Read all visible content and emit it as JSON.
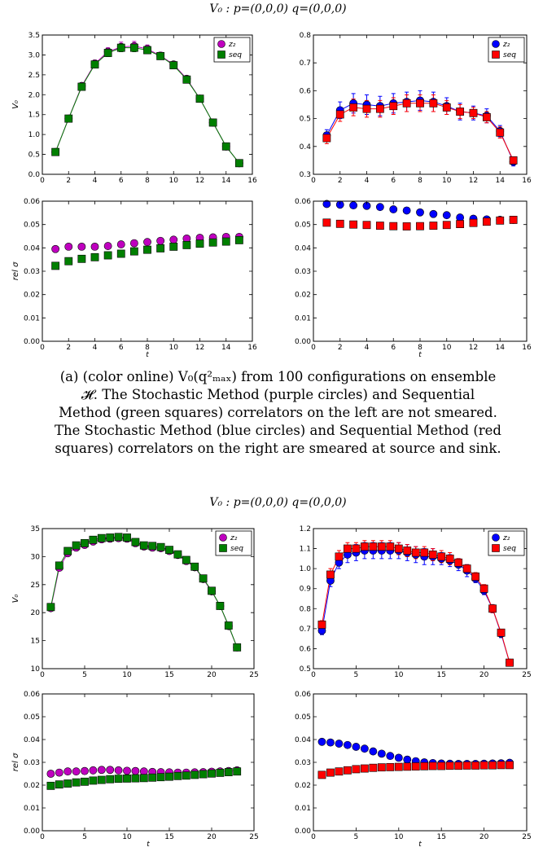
{
  "figure_a": {
    "title": "V₀ : p=(0,0,0) q=(0,0,0)",
    "caption_lines": [
      "(a) (color online) V₀(q²ₘₐₓ) from 100 configurations on ensemble",
      "𝓗. The Stochastic Method (purple circles) and Sequential",
      "Method (green squares) correlators on the left are not smeared.",
      "The Stochastic Method (blue circles) and Sequential Method (red",
      "squares) correlators on the right are smeared at source and sink."
    ]
  },
  "figure_b": {
    "title": "V₀ : p=(0,0,0) q=(0,0,0)"
  },
  "chart_data": [
    {
      "id": "a-top-left",
      "type": "line",
      "x": [
        1,
        2,
        3,
        4,
        5,
        6,
        7,
        8,
        9,
        10,
        11,
        12,
        13,
        14,
        15
      ],
      "xlim": [
        0,
        16
      ],
      "ylim": [
        0,
        3.5
      ],
      "xticks": [
        "0",
        "2",
        "4",
        "6",
        "8",
        "10",
        "12",
        "14",
        "16"
      ],
      "yticks": [
        "0.0",
        "0.5",
        "1.0",
        "1.5",
        "2.0",
        "2.5",
        "3.0",
        "3.5"
      ],
      "ylabel": "V₀",
      "xlabel": "",
      "legend": "top-right",
      "grid": false,
      "series": [
        {
          "name": "z₂",
          "marker": "circle",
          "color": "#bf00bf",
          "values": [
            0.56,
            1.4,
            2.22,
            2.78,
            3.08,
            3.2,
            3.22,
            3.15,
            2.98,
            2.76,
            2.4,
            1.9,
            1.3,
            0.7,
            0.28
          ],
          "errors": [
            0.05,
            0.06,
            0.08,
            0.09,
            0.1,
            0.12,
            0.12,
            0.1,
            0.09,
            0.08,
            0.06,
            0.05,
            0.04,
            0.03,
            0.02
          ]
        },
        {
          "name": "seq",
          "marker": "square",
          "color": "#007f00",
          "values": [
            0.56,
            1.4,
            2.2,
            2.76,
            3.05,
            3.18,
            3.18,
            3.12,
            2.97,
            2.74,
            2.38,
            1.9,
            1.3,
            0.7,
            0.28
          ],
          "errors": [
            0.04,
            0.05,
            0.07,
            0.08,
            0.09,
            0.1,
            0.1,
            0.09,
            0.08,
            0.07,
            0.05,
            0.04,
            0.03,
            0.02,
            0.02
          ]
        }
      ]
    },
    {
      "id": "a-top-right",
      "type": "line",
      "x": [
        1,
        2,
        3,
        4,
        5,
        6,
        7,
        8,
        9,
        10,
        11,
        12,
        13,
        14,
        15
      ],
      "xlim": [
        0,
        16
      ],
      "ylim": [
        0.3,
        0.8
      ],
      "xticks": [
        "0",
        "2",
        "4",
        "6",
        "8",
        "10",
        "12",
        "14",
        "16"
      ],
      "yticks": [
        "0.3",
        "0.4",
        "0.5",
        "0.6",
        "0.7",
        "0.8"
      ],
      "ylabel": "",
      "xlabel": "",
      "legend": "top-right",
      "grid": false,
      "series": [
        {
          "name": "z₂",
          "marker": "circle",
          "color": "#0000ff",
          "values": [
            0.44,
            0.53,
            0.555,
            0.55,
            0.545,
            0.555,
            0.56,
            0.565,
            0.56,
            0.545,
            0.525,
            0.52,
            0.51,
            0.455,
            0.345
          ],
          "errors": [
            0.02,
            0.03,
            0.035,
            0.035,
            0.035,
            0.035,
            0.035,
            0.035,
            0.035,
            0.03,
            0.03,
            0.025,
            0.025,
            0.02,
            0.015
          ]
        },
        {
          "name": "seq",
          "marker": "square",
          "color": "#ff0000",
          "values": [
            0.43,
            0.515,
            0.54,
            0.535,
            0.535,
            0.545,
            0.555,
            0.555,
            0.555,
            0.54,
            0.525,
            0.52,
            0.505,
            0.45,
            0.35
          ],
          "errors": [
            0.02,
            0.025,
            0.03,
            0.03,
            0.03,
            0.03,
            0.03,
            0.03,
            0.03,
            0.025,
            0.025,
            0.02,
            0.02,
            0.02,
            0.01
          ]
        }
      ]
    },
    {
      "id": "a-bottom-left",
      "type": "scatter",
      "x": [
        1,
        2,
        3,
        4,
        5,
        6,
        7,
        8,
        9,
        10,
        11,
        12,
        13,
        14,
        15
      ],
      "xlim": [
        0,
        16
      ],
      "ylim": [
        0,
        0.06
      ],
      "xticks": [
        "0",
        "2",
        "4",
        "6",
        "8",
        "10",
        "12",
        "14",
        "16"
      ],
      "yticks": [
        "0.00",
        "0.01",
        "0.02",
        "0.03",
        "0.04",
        "0.05",
        "0.06"
      ],
      "ylabel": "rel σ",
      "xlabel": "t",
      "grid": false,
      "series": [
        {
          "name": "z₂",
          "marker": "circle",
          "color": "#bf00bf",
          "values": [
            0.0395,
            0.0405,
            0.0405,
            0.0405,
            0.0408,
            0.0415,
            0.042,
            0.0425,
            0.043,
            0.0435,
            0.044,
            0.0443,
            0.0445,
            0.0447,
            0.0447
          ]
        },
        {
          "name": "seq",
          "marker": "square",
          "color": "#007f00",
          "values": [
            0.0323,
            0.0343,
            0.0353,
            0.036,
            0.0368,
            0.0375,
            0.0385,
            0.0392,
            0.0398,
            0.0405,
            0.0412,
            0.0418,
            0.0423,
            0.0427,
            0.0433
          ]
        }
      ]
    },
    {
      "id": "a-bottom-right",
      "type": "scatter",
      "x": [
        1,
        2,
        3,
        4,
        5,
        6,
        7,
        8,
        9,
        10,
        11,
        12,
        13,
        14,
        15
      ],
      "xlim": [
        0,
        16
      ],
      "ylim": [
        0,
        0.06
      ],
      "xticks": [
        "0",
        "2",
        "4",
        "6",
        "8",
        "10",
        "12",
        "14",
        "16"
      ],
      "yticks": [
        "0.00",
        "0.01",
        "0.02",
        "0.03",
        "0.04",
        "0.05",
        "0.06"
      ],
      "ylabel": "",
      "xlabel": "t",
      "grid": false,
      "series": [
        {
          "name": "z₂",
          "marker": "circle",
          "color": "#0000ff",
          "values": [
            0.0588,
            0.0585,
            0.0582,
            0.058,
            0.0575,
            0.0565,
            0.056,
            0.0552,
            0.0545,
            0.054,
            0.053,
            0.0525,
            0.0522,
            0.052,
            0.052
          ]
        },
        {
          "name": "seq",
          "marker": "square",
          "color": "#ff0000",
          "values": [
            0.0508,
            0.0503,
            0.05,
            0.0498,
            0.0495,
            0.0493,
            0.0492,
            0.0493,
            0.0495,
            0.0498,
            0.0502,
            0.0507,
            0.0512,
            0.0517,
            0.052
          ]
        }
      ]
    },
    {
      "id": "b-top-left",
      "type": "line",
      "x": [
        1,
        2,
        3,
        4,
        5,
        6,
        7,
        8,
        9,
        10,
        11,
        12,
        13,
        14,
        15,
        16,
        17,
        18,
        19,
        20,
        21,
        22,
        23
      ],
      "xlim": [
        0,
        25
      ],
      "ylim": [
        10,
        35
      ],
      "xticks": [
        "0",
        "5",
        "10",
        "15",
        "20",
        "25"
      ],
      "yticks": [
        "10",
        "15",
        "20",
        "25",
        "30",
        "35"
      ],
      "ylabel": "V₀",
      "xlabel": "",
      "legend": "top-right",
      "grid": false,
      "series": [
        {
          "name": "z₂",
          "marker": "circle",
          "color": "#bf00bf",
          "values": [
            20.8,
            28.0,
            30.6,
            31.6,
            32.1,
            32.7,
            33.1,
            33.2,
            33.3,
            33.2,
            32.4,
            31.8,
            31.6,
            31.5,
            31.0,
            30.3,
            29.2,
            28.1,
            26.0,
            23.8,
            21.2,
            17.6,
            13.8
          ],
          "errors": [
            0.3,
            0.4,
            0.5,
            0.5,
            0.6,
            0.6,
            0.6,
            0.6,
            0.6,
            0.6,
            0.6,
            0.5,
            0.5,
            0.5,
            0.5,
            0.5,
            0.4,
            0.4,
            0.4,
            0.3,
            0.3,
            0.3,
            0.2
          ]
        },
        {
          "name": "seq",
          "marker": "square",
          "color": "#007f00",
          "values": [
            21.0,
            28.4,
            31.0,
            32.0,
            32.4,
            33.0,
            33.3,
            33.4,
            33.5,
            33.4,
            32.6,
            32.0,
            31.9,
            31.7,
            31.2,
            30.4,
            29.4,
            28.2,
            26.1,
            23.9,
            21.2,
            17.7,
            13.8
          ],
          "errors": [
            0.2,
            0.3,
            0.4,
            0.4,
            0.5,
            0.5,
            0.5,
            0.5,
            0.5,
            0.5,
            0.5,
            0.4,
            0.4,
            0.4,
            0.4,
            0.4,
            0.3,
            0.3,
            0.3,
            0.3,
            0.2,
            0.2,
            0.2
          ]
        }
      ]
    },
    {
      "id": "b-top-right",
      "type": "line",
      "x": [
        1,
        2,
        3,
        4,
        5,
        6,
        7,
        8,
        9,
        10,
        11,
        12,
        13,
        14,
        15,
        16,
        17,
        18,
        19,
        20,
        21,
        22,
        23
      ],
      "xlim": [
        0,
        25
      ],
      "ylim": [
        0.5,
        1.2
      ],
      "xticks": [
        "0",
        "5",
        "10",
        "15",
        "20",
        "25"
      ],
      "yticks": [
        "0.5",
        "0.6",
        "0.7",
        "0.8",
        "0.9",
        "1.0",
        "1.1",
        "1.2"
      ],
      "ylabel": "",
      "xlabel": "",
      "legend": "top-right",
      "grid": false,
      "series": [
        {
          "name": "z₂",
          "marker": "circle",
          "color": "#0000ff",
          "values": [
            0.69,
            0.94,
            1.03,
            1.07,
            1.08,
            1.09,
            1.09,
            1.09,
            1.09,
            1.09,
            1.08,
            1.07,
            1.06,
            1.06,
            1.05,
            1.04,
            1.02,
            0.99,
            0.95,
            0.89,
            0.8,
            0.675,
            0.53
          ],
          "errors": [
            0.02,
            0.03,
            0.03,
            0.04,
            0.04,
            0.04,
            0.04,
            0.04,
            0.04,
            0.04,
            0.04,
            0.04,
            0.04,
            0.04,
            0.03,
            0.03,
            0.03,
            0.03,
            0.02,
            0.02,
            0.02,
            0.02,
            0.01
          ]
        },
        {
          "name": "seq",
          "marker": "square",
          "color": "#ff0000",
          "values": [
            0.72,
            0.97,
            1.06,
            1.1,
            1.1,
            1.11,
            1.11,
            1.11,
            1.11,
            1.1,
            1.09,
            1.08,
            1.08,
            1.07,
            1.06,
            1.05,
            1.03,
            1.0,
            0.96,
            0.9,
            0.8,
            0.68,
            0.53
          ],
          "errors": [
            0.02,
            0.03,
            0.03,
            0.03,
            0.03,
            0.03,
            0.03,
            0.03,
            0.03,
            0.03,
            0.03,
            0.03,
            0.03,
            0.03,
            0.03,
            0.03,
            0.02,
            0.02,
            0.02,
            0.02,
            0.02,
            0.01,
            0.01
          ]
        }
      ]
    },
    {
      "id": "b-bottom-left",
      "type": "scatter",
      "x": [
        1,
        2,
        3,
        4,
        5,
        6,
        7,
        8,
        9,
        10,
        11,
        12,
        13,
        14,
        15,
        16,
        17,
        18,
        19,
        20,
        21,
        22,
        23
      ],
      "xlim": [
        0,
        25
      ],
      "ylim": [
        0,
        0.06
      ],
      "xticks": [
        "0",
        "5",
        "10",
        "15",
        "20",
        "25"
      ],
      "yticks": [
        "0.00",
        "0.01",
        "0.02",
        "0.03",
        "0.04",
        "0.05",
        "0.06"
      ],
      "ylabel": "rel σ",
      "xlabel": "t",
      "grid": false,
      "series": [
        {
          "name": "z₂",
          "marker": "circle",
          "color": "#bf00bf",
          "values": [
            0.025,
            0.0255,
            0.026,
            0.026,
            0.0262,
            0.0265,
            0.0267,
            0.0267,
            0.0265,
            0.0263,
            0.0262,
            0.026,
            0.0258,
            0.0257,
            0.0256,
            0.0255,
            0.0255,
            0.0256,
            0.0257,
            0.0259,
            0.026,
            0.0262,
            0.0265
          ]
        },
        {
          "name": "seq",
          "marker": "square",
          "color": "#007f00",
          "values": [
            0.0197,
            0.0203,
            0.0207,
            0.0212,
            0.0215,
            0.022,
            0.0223,
            0.0226,
            0.0228,
            0.0229,
            0.023,
            0.0231,
            0.0233,
            0.0235,
            0.0237,
            0.024,
            0.0242,
            0.0245,
            0.0248,
            0.0251,
            0.0254,
            0.0257,
            0.026
          ]
        }
      ]
    },
    {
      "id": "b-bottom-right",
      "type": "scatter",
      "x": [
        1,
        2,
        3,
        4,
        5,
        6,
        7,
        8,
        9,
        10,
        11,
        12,
        13,
        14,
        15,
        16,
        17,
        18,
        19,
        20,
        21,
        22,
        23
      ],
      "xlim": [
        0,
        25
      ],
      "ylim": [
        0,
        0.06
      ],
      "xticks": [
        "0",
        "5",
        "10",
        "15",
        "20",
        "25"
      ],
      "yticks": [
        "0.00",
        "0.01",
        "0.02",
        "0.03",
        "0.04",
        "0.05",
        "0.06"
      ],
      "ylabel": "",
      "xlabel": "t",
      "grid": false,
      "series": [
        {
          "name": "z₂",
          "marker": "circle",
          "color": "#0000ff",
          "values": [
            0.039,
            0.0387,
            0.0382,
            0.0376,
            0.0368,
            0.036,
            0.0348,
            0.0338,
            0.0328,
            0.032,
            0.0312,
            0.0305,
            0.03,
            0.0297,
            0.0295,
            0.0294,
            0.0293,
            0.0293,
            0.0293,
            0.0294,
            0.0295,
            0.0296,
            0.0298
          ]
        },
        {
          "name": "seq",
          "marker": "square",
          "color": "#ff0000",
          "values": [
            0.0245,
            0.0255,
            0.026,
            0.0265,
            0.027,
            0.0273,
            0.0276,
            0.0278,
            0.0279,
            0.028,
            0.0281,
            0.0282,
            0.0283,
            0.0284,
            0.0284,
            0.0285,
            0.0285,
            0.0286,
            0.0286,
            0.0287,
            0.0287,
            0.0288,
            0.0288
          ]
        }
      ]
    }
  ]
}
